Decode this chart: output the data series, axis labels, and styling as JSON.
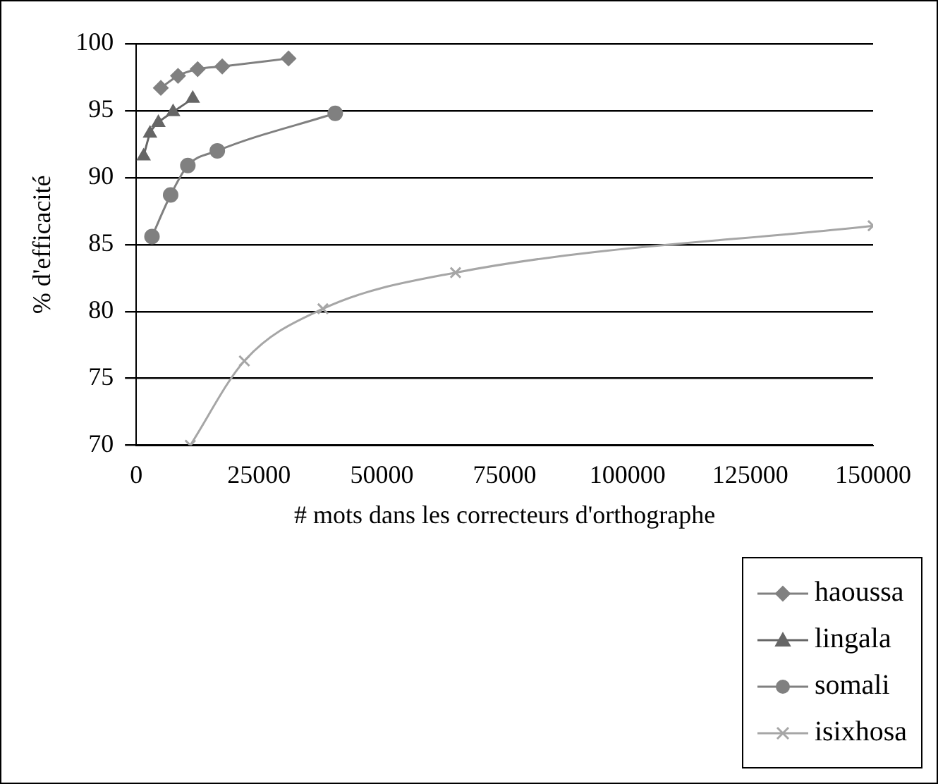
{
  "chart_data": {
    "type": "line",
    "xlabel": "# mots dans les correcteurs d'orthographe",
    "ylabel": "% d'efficacité",
    "xlim": [
      0,
      150000
    ],
    "xticks": [
      0,
      25000,
      50000,
      75000,
      100000,
      125000,
      150000
    ],
    "ylim": [
      70,
      100
    ],
    "yticks": [
      70,
      75,
      80,
      85,
      90,
      95,
      100
    ],
    "grid": "y",
    "legend": "bottom right",
    "series": [
      {
        "name": "haoussa",
        "color": "#808080",
        "marker": "diamond",
        "x": [
          5000,
          8500,
          12500,
          17500,
          31000
        ],
        "values": [
          96.7,
          97.6,
          98.1,
          98.3,
          98.9
        ]
      },
      {
        "name": "lingala",
        "color": "#666666",
        "marker": "triangle",
        "x": [
          1500,
          2800,
          4500,
          7500,
          11500
        ],
        "values": [
          91.6,
          93.3,
          94.1,
          94.9,
          95.9
        ]
      },
      {
        "name": "somali",
        "color": "#808080",
        "marker": "circle",
        "x": [
          3200,
          7000,
          10500,
          16500,
          40500
        ],
        "values": [
          85.6,
          88.7,
          90.9,
          92.0,
          94.8
        ]
      },
      {
        "name": "isixhosa",
        "color": "#a6a6a6",
        "marker": "cross",
        "x": [
          11000,
          22000,
          38000,
          65000,
          150000
        ],
        "values": [
          70.0,
          76.3,
          80.2,
          82.9,
          86.4
        ]
      }
    ]
  }
}
